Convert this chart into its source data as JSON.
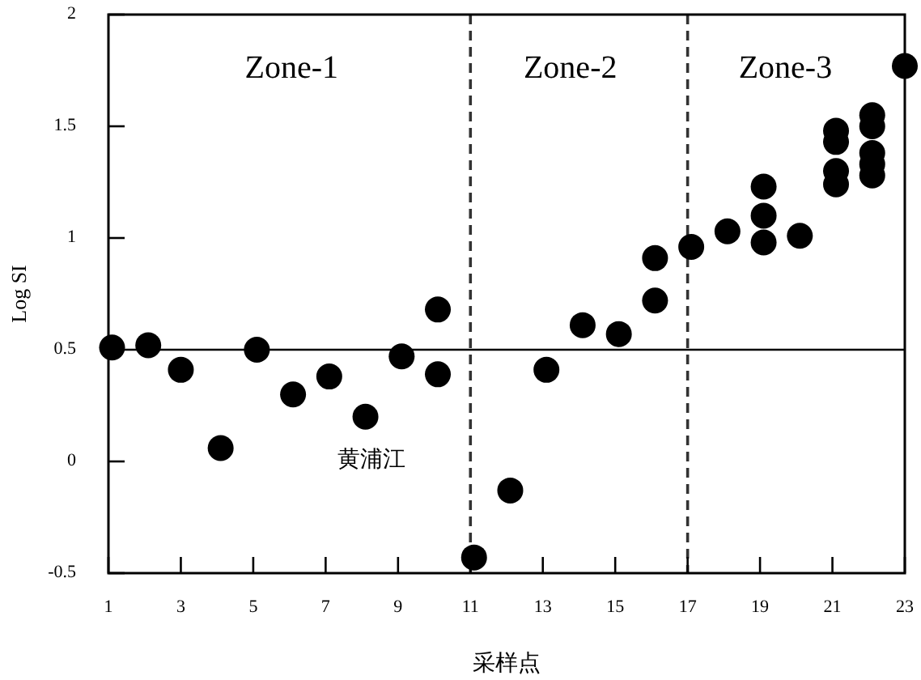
{
  "chart_data": {
    "type": "scatter",
    "xlabel": "采样点",
    "ylabel": "Log SI",
    "xlim": [
      1,
      23
    ],
    "xticks": [
      1,
      3,
      5,
      7,
      9,
      11,
      13,
      15,
      17,
      19,
      21,
      23
    ],
    "ylim": [
      -0.5,
      2
    ],
    "yticks": [
      -0.5,
      0,
      0.5,
      1,
      1.5,
      2
    ],
    "marker": "circle",
    "grid": false,
    "series": [
      {
        "color": "#000000",
        "x": [
          1.1,
          2.1,
          3.0,
          4.1,
          5.1,
          6.1,
          7.1,
          8.1,
          9.1,
          10.1,
          10.1,
          11.1,
          12.1,
          13.1,
          14.1,
          15.1,
          16.1,
          16.1,
          17.1,
          18.1,
          19.1,
          19.1,
          19.1,
          20.1,
          21.1,
          21.1,
          21.1,
          21.1,
          22.1,
          22.1,
          22.1,
          22.1,
          22.1,
          23
        ],
        "values": [
          0.51,
          0.52,
          0.41,
          0.06,
          0.5,
          0.3,
          0.38,
          0.2,
          0.47,
          0.68,
          0.39,
          -0.43,
          -0.13,
          0.41,
          0.61,
          0.57,
          0.91,
          0.72,
          0.96,
          1.03,
          1.23,
          1.1,
          0.98,
          1.01,
          1.48,
          1.43,
          1.3,
          1.24,
          1.55,
          1.5,
          1.38,
          1.33,
          1.28,
          1.77
        ]
      }
    ],
    "ref_lines": [
      {
        "axis": "y",
        "value": 0.5,
        "line_style": "solid"
      },
      {
        "axis": "x",
        "value": 11,
        "line_style": "dashed"
      },
      {
        "axis": "x",
        "value": 17,
        "line_style": "dashed"
      }
    ],
    "annotations": [
      "Zone-1",
      "Zone-2",
      "Zone-3",
      "黄浦江"
    ]
  }
}
